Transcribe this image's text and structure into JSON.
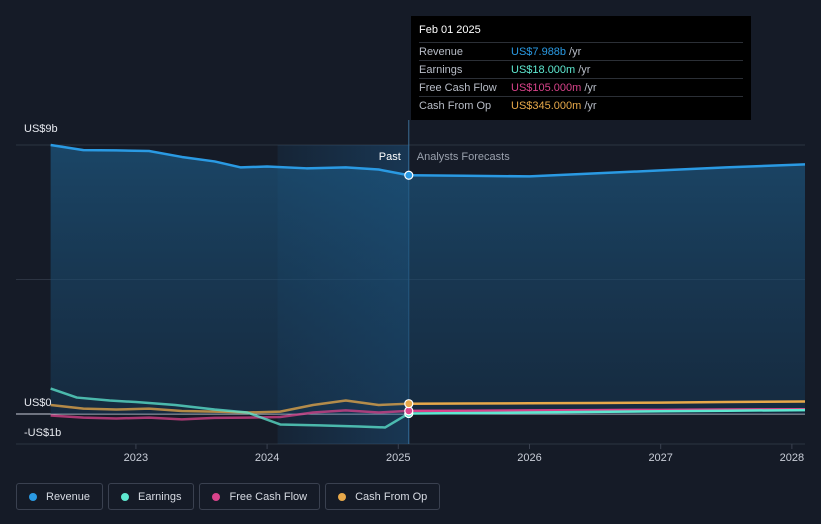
{
  "chart_data": {
    "type": "area",
    "y_axis_labels": {
      "top": "US$9b",
      "zero": "US$0",
      "bottom": "-US$1b"
    },
    "ylim": [
      -1,
      9
    ],
    "x_ticks": [
      "2023",
      "2024",
      "2025",
      "2026",
      "2027",
      "2028"
    ],
    "x_tick_values": [
      2023,
      2024,
      2025,
      2026,
      2027,
      2028
    ],
    "xlim": [
      2022.33,
      2028.1
    ],
    "divider_x": 2025.08,
    "shade_start_x": 2024.08,
    "past_label": "Past",
    "forecast_label": "Analysts Forecasts",
    "series": [
      {
        "name": "Revenue",
        "color": "#2a9ae3",
        "past": [
          [
            2022.35,
            9.0
          ],
          [
            2022.6,
            8.83
          ],
          [
            2022.85,
            8.82
          ],
          [
            2023.1,
            8.8
          ],
          [
            2023.35,
            8.6
          ],
          [
            2023.6,
            8.45
          ],
          [
            2023.8,
            8.25
          ],
          [
            2024.0,
            8.28
          ],
          [
            2024.3,
            8.22
          ],
          [
            2024.6,
            8.25
          ],
          [
            2024.85,
            8.18
          ],
          [
            2025.08,
            7.988
          ]
        ],
        "forecast": [
          [
            2025.08,
            7.988
          ],
          [
            2025.5,
            7.97
          ],
          [
            2026.0,
            7.95
          ],
          [
            2026.5,
            8.05
          ],
          [
            2027.0,
            8.15
          ],
          [
            2027.5,
            8.25
          ],
          [
            2028.1,
            8.35
          ]
        ]
      },
      {
        "name": "Earnings",
        "color": "#5ee8d0",
        "past": [
          [
            2022.35,
            0.85
          ],
          [
            2022.55,
            0.55
          ],
          [
            2022.8,
            0.45
          ],
          [
            2023.0,
            0.4
          ],
          [
            2023.3,
            0.3
          ],
          [
            2023.6,
            0.15
          ],
          [
            2023.85,
            0.05
          ],
          [
            2024.1,
            -0.35
          ],
          [
            2024.4,
            -0.38
          ],
          [
            2024.7,
            -0.42
          ],
          [
            2024.9,
            -0.45
          ],
          [
            2025.08,
            0.018
          ]
        ],
        "forecast": [
          [
            2025.08,
            0.018
          ],
          [
            2025.5,
            0.03
          ],
          [
            2026.0,
            0.05
          ],
          [
            2026.5,
            0.07
          ],
          [
            2027.0,
            0.09
          ],
          [
            2027.5,
            0.11
          ],
          [
            2028.1,
            0.13
          ]
        ]
      },
      {
        "name": "Free Cash Flow",
        "color": "#d9438b",
        "past": [
          [
            2022.35,
            -0.05
          ],
          [
            2022.6,
            -0.12
          ],
          [
            2022.85,
            -0.15
          ],
          [
            2023.1,
            -0.12
          ],
          [
            2023.35,
            -0.18
          ],
          [
            2023.6,
            -0.13
          ],
          [
            2023.85,
            -0.12
          ],
          [
            2024.1,
            -0.1
          ],
          [
            2024.35,
            0.05
          ],
          [
            2024.6,
            0.12
          ],
          [
            2024.85,
            0.05
          ],
          [
            2025.08,
            0.105
          ]
        ],
        "forecast": [
          [
            2025.08,
            0.105
          ],
          [
            2025.5,
            0.11
          ],
          [
            2026.0,
            0.12
          ],
          [
            2026.5,
            0.13
          ],
          [
            2027.0,
            0.14
          ],
          [
            2027.5,
            0.15
          ],
          [
            2028.1,
            0.16
          ]
        ]
      },
      {
        "name": "Cash From Op",
        "color": "#e8a94a",
        "past": [
          [
            2022.35,
            0.3
          ],
          [
            2022.6,
            0.18
          ],
          [
            2022.85,
            0.15
          ],
          [
            2023.1,
            0.18
          ],
          [
            2023.35,
            0.1
          ],
          [
            2023.6,
            0.08
          ],
          [
            2023.85,
            0.05
          ],
          [
            2024.1,
            0.08
          ],
          [
            2024.35,
            0.3
          ],
          [
            2024.6,
            0.45
          ],
          [
            2024.85,
            0.3
          ],
          [
            2025.08,
            0.345
          ]
        ],
        "forecast": [
          [
            2025.08,
            0.345
          ],
          [
            2025.5,
            0.35
          ],
          [
            2026.0,
            0.36
          ],
          [
            2026.5,
            0.37
          ],
          [
            2027.0,
            0.38
          ],
          [
            2027.5,
            0.4
          ],
          [
            2028.1,
            0.42
          ]
        ]
      }
    ],
    "tooltip": {
      "date": "Feb 01 2025",
      "rows": [
        {
          "name": "Revenue",
          "value": "US$7.988b",
          "unit": "/yr",
          "color": "#2a9ae3"
        },
        {
          "name": "Earnings",
          "value": "US$18.000m",
          "unit": "/yr",
          "color": "#5ee8d0"
        },
        {
          "name": "Free Cash Flow",
          "value": "US$105.000m",
          "unit": "/yr",
          "color": "#d9438b"
        },
        {
          "name": "Cash From Op",
          "value": "US$345.000m",
          "unit": "/yr",
          "color": "#e8a94a"
        }
      ]
    },
    "legend": [
      {
        "name": "Revenue",
        "color": "#2a9ae3"
      },
      {
        "name": "Earnings",
        "color": "#5ee8d0"
      },
      {
        "name": "Free Cash Flow",
        "color": "#d9438b"
      },
      {
        "name": "Cash From Op",
        "color": "#e8a94a"
      }
    ]
  }
}
